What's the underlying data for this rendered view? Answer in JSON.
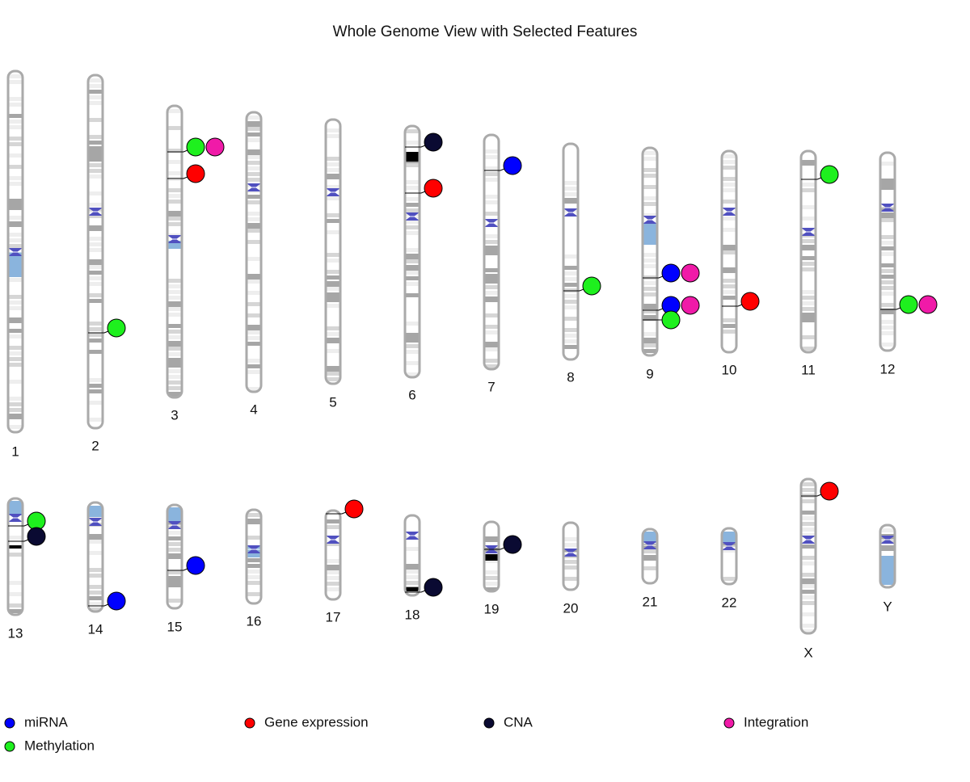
{
  "title": "Whole Genome View with Selected Features",
  "chromosomes": [
    {
      "label": "1",
      "features": []
    },
    {
      "label": "2",
      "features": [
        [
          "Methylation"
        ]
      ]
    },
    {
      "label": "3",
      "features": [
        [
          "Methylation",
          "Integration"
        ],
        [
          "Gene expression"
        ]
      ]
    },
    {
      "label": "4",
      "features": []
    },
    {
      "label": "5",
      "features": []
    },
    {
      "label": "6",
      "features": [
        [
          "CNA"
        ],
        [
          "Gene expression"
        ]
      ]
    },
    {
      "label": "7",
      "features": [
        [
          "miRNA"
        ]
      ]
    },
    {
      "label": "8",
      "features": [
        [
          "Methylation"
        ]
      ]
    },
    {
      "label": "9",
      "features": [
        [
          "miRNA",
          "Integration"
        ],
        [
          "miRNA",
          "Integration"
        ],
        [
          "Methylation"
        ]
      ]
    },
    {
      "label": "10",
      "features": [
        [
          "Gene expression"
        ]
      ]
    },
    {
      "label": "11",
      "features": [
        [
          "Methylation"
        ]
      ]
    },
    {
      "label": "12",
      "features": [
        [
          "Methylation",
          "Integration"
        ]
      ]
    },
    {
      "label": "13",
      "features": [
        [
          "Methylation"
        ],
        [
          "CNA"
        ]
      ]
    },
    {
      "label": "14",
      "features": [
        [
          "miRNA"
        ]
      ]
    },
    {
      "label": "15",
      "features": [
        [
          "miRNA"
        ]
      ]
    },
    {
      "label": "16",
      "features": []
    },
    {
      "label": "17",
      "features": [
        [
          "Gene expression"
        ]
      ]
    },
    {
      "label": "18",
      "features": [
        [
          "CNA"
        ]
      ]
    },
    {
      "label": "19",
      "features": [
        [
          "CNA"
        ]
      ]
    },
    {
      "label": "20",
      "features": []
    },
    {
      "label": "21",
      "features": []
    },
    {
      "label": "22",
      "features": []
    },
    {
      "label": "X",
      "features": [
        [
          "Gene expression"
        ]
      ]
    },
    {
      "label": "Y",
      "features": []
    }
  ],
  "legend": [
    {
      "label": "miRNA",
      "color": "#0000ff"
    },
    {
      "label": "Gene expression",
      "color": "#ff0000"
    },
    {
      "label": "CNA",
      "color": "#0a0a32"
    },
    {
      "label": "Integration",
      "color": "#f01aa8"
    },
    {
      "label": "Methylation",
      "color": "#1ef01e"
    }
  ]
}
